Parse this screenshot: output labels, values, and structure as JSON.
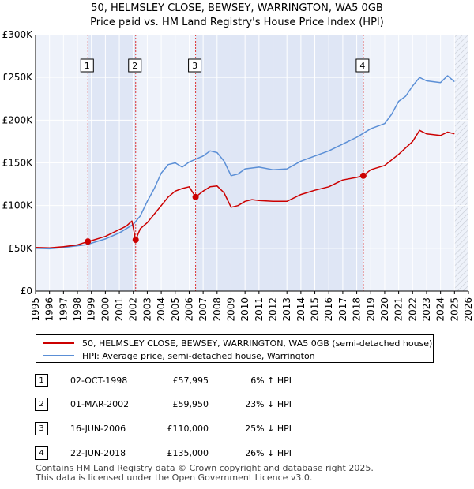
{
  "chart_data": {
    "type": "line",
    "title": "50, HELMSLEY CLOSE, BEWSEY, WARRINGTON, WA5 0GB",
    "subtitle": "Price paid vs. HM Land Registry's House Price Index (HPI)",
    "xlabel": "",
    "ylabel": "",
    "xlim": [
      1995,
      2026
    ],
    "ylim": [
      0,
      300000
    ],
    "y_ticks": [
      0,
      50000,
      100000,
      150000,
      200000,
      250000,
      300000
    ],
    "y_tick_labels": [
      "£0",
      "£50K",
      "£100K",
      "£150K",
      "£200K",
      "£250K",
      "£300K"
    ],
    "x_ticks": [
      1995,
      1996,
      1997,
      1998,
      1999,
      2000,
      2001,
      2002,
      2003,
      2004,
      2005,
      2006,
      2007,
      2008,
      2009,
      2010,
      2011,
      2012,
      2013,
      2014,
      2015,
      2016,
      2017,
      2018,
      2019,
      2020,
      2021,
      2022,
      2023,
      2024,
      2025,
      2026
    ],
    "x_tick_labels": [
      "1995",
      "1996",
      "1997",
      "1998",
      "1999",
      "2000",
      "2001",
      "2002",
      "2003",
      "2004",
      "2005",
      "2006",
      "2007",
      "2008",
      "2009",
      "2010",
      "2011",
      "2012",
      "2013",
      "2014",
      "2015",
      "2016",
      "2017",
      "2018",
      "2019",
      "2020",
      "2021",
      "2022",
      "2023",
      "2024",
      "2025",
      "2026"
    ],
    "grid": true,
    "legend_position": "below",
    "shaded_ranges": [
      [
        1998.75,
        2002.17
      ],
      [
        2006.46,
        2018.47
      ]
    ],
    "forecast_from": 2025.0,
    "series": [
      {
        "name": "50, HELMSLEY CLOSE, BEWSEY, WARRINGTON, WA5 0GB (semi-detached house)",
        "color": "#cc0000",
        "x": [
          1995.0,
          1996.0,
          1997.0,
          1998.0,
          1998.75,
          1999.0,
          2000.0,
          2001.0,
          2001.5,
          2001.9,
          2002.17,
          2002.5,
          2003.0,
          2003.5,
          2004.0,
          2004.5,
          2005.0,
          2005.5,
          2006.0,
          2006.46,
          2007.0,
          2007.5,
          2008.0,
          2008.5,
          2009.0,
          2009.5,
          2010.0,
          2010.5,
          2011.0,
          2012.0,
          2013.0,
          2014.0,
          2015.0,
          2016.0,
          2017.0,
          2018.0,
          2018.47,
          2019.0,
          2020.0,
          2021.0,
          2022.0,
          2022.5,
          2023.0,
          2024.0,
          2024.5,
          2025.0
        ],
        "values": [
          51000,
          50500,
          52000,
          54000,
          57995,
          59000,
          64000,
          72000,
          76000,
          82000,
          59950,
          73000,
          80000,
          90000,
          100000,
          110000,
          117000,
          120000,
          122000,
          110000,
          117000,
          122000,
          123000,
          115000,
          98000,
          100000,
          105000,
          107000,
          106000,
          105000,
          105000,
          113000,
          118000,
          122000,
          130000,
          133000,
          135000,
          142000,
          147000,
          160000,
          175000,
          188000,
          184000,
          182000,
          186000,
          184000
        ]
      },
      {
        "name": "HPI: Average price, semi-detached house, Warrington",
        "color": "#5b8fd6",
        "x": [
          1995.0,
          1996.0,
          1997.0,
          1998.0,
          1998.75,
          1999.0,
          2000.0,
          2001.0,
          2002.0,
          2002.5,
          2003.0,
          2003.5,
          2004.0,
          2004.5,
          2005.0,
          2005.5,
          2006.0,
          2007.0,
          2007.5,
          2008.0,
          2008.5,
          2009.0,
          2009.5,
          2010.0,
          2011.0,
          2012.0,
          2013.0,
          2014.0,
          2015.0,
          2016.0,
          2017.0,
          2018.0,
          2019.0,
          2020.0,
          2020.5,
          2021.0,
          2021.5,
          2022.0,
          2022.5,
          2023.0,
          2023.5,
          2024.0,
          2024.5,
          2025.0
        ],
        "values": [
          50000,
          49500,
          51000,
          53000,
          54500,
          56000,
          61000,
          68000,
          78000,
          88000,
          105000,
          120000,
          138000,
          148000,
          150000,
          145000,
          151000,
          158000,
          164000,
          162000,
          152000,
          135000,
          137000,
          143000,
          145000,
          142000,
          143000,
          152000,
          158000,
          164000,
          172000,
          180000,
          190000,
          196000,
          207000,
          222000,
          228000,
          240000,
          250000,
          246000,
          245000,
          244000,
          252000,
          245000
        ]
      }
    ],
    "markers": [
      {
        "label": "1",
        "x": 1998.75,
        "y": 57995
      },
      {
        "label": "2",
        "x": 2002.17,
        "y": 59950
      },
      {
        "label": "3",
        "x": 2006.46,
        "y": 110000
      },
      {
        "label": "4",
        "x": 2018.47,
        "y": 135000
      }
    ]
  },
  "legend": {
    "property_label": "50, HELMSLEY CLOSE, BEWSEY, WARRINGTON, WA5 0GB (semi-detached house)",
    "hpi_label": "HPI: Average price, semi-detached house, Warrington"
  },
  "sales": [
    {
      "num": "1",
      "date": "02-OCT-1998",
      "price": "£57,995",
      "relation": "6% ↑ HPI"
    },
    {
      "num": "2",
      "date": "01-MAR-2002",
      "price": "£59,950",
      "relation": "23% ↓ HPI"
    },
    {
      "num": "3",
      "date": "16-JUN-2006",
      "price": "£110,000",
      "relation": "25% ↓ HPI"
    },
    {
      "num": "4",
      "date": "22-JUN-2018",
      "price": "£135,000",
      "relation": "26% ↓ HPI"
    }
  ],
  "footer": {
    "line1": "Contains HM Land Registry data © Crown copyright and database right 2025.",
    "line2": "This data is licensed under the Open Government Licence v3.0."
  }
}
